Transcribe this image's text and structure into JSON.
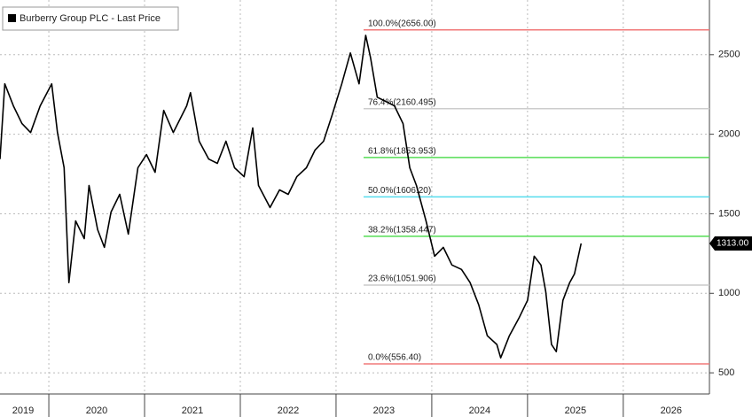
{
  "chart_data": {
    "type": "line",
    "legend": "Burberry Group PLC - Last Price",
    "series": [
      {
        "name": "Burberry Group PLC - Last Price",
        "color": "#000000",
        "x": [
          2019.49,
          2019.54,
          2019.63,
          2019.72,
          2019.81,
          2019.91,
          2020.03,
          2020.09,
          2020.16,
          2020.21,
          2020.28,
          2020.37,
          2020.42,
          2020.51,
          2020.58,
          2020.65,
          2020.74,
          2020.83,
          2020.93,
          2021.02,
          2021.11,
          2021.2,
          2021.3,
          2021.44,
          2021.48,
          2021.57,
          2021.67,
          2021.76,
          2021.85,
          2021.94,
          2022.04,
          2022.13,
          2022.19,
          2022.31,
          2022.41,
          2022.5,
          2022.59,
          2022.69,
          2022.78,
          2022.87,
          2022.96,
          2023.06,
          2023.15,
          2023.24,
          2023.31,
          2023.36,
          2023.43,
          2023.52,
          2023.61,
          2023.7,
          2023.77,
          2023.84,
          2023.94,
          2024.03,
          2024.12,
          2024.21,
          2024.31,
          2024.4,
          2024.49,
          2024.58,
          2024.68,
          2024.72,
          2024.81,
          2024.91,
          2025.0,
          2025.07,
          2025.14,
          2025.19,
          2025.25,
          2025.3,
          2025.37,
          2025.44,
          2025.49,
          2025.56
        ],
        "values": [
          1844,
          2317,
          2178,
          2067,
          2011,
          2178,
          2317,
          2011,
          1789,
          1067,
          1455,
          1344,
          1678,
          1400,
          1289,
          1511,
          1622,
          1372,
          1789,
          1872,
          1761,
          2150,
          2011,
          2178,
          2261,
          1956,
          1844,
          1817,
          1956,
          1789,
          1733,
          2039,
          1678,
          1539,
          1650,
          1622,
          1733,
          1789,
          1900,
          1956,
          2122,
          2317,
          2511,
          2317,
          2622,
          2483,
          2233,
          2206,
          2178,
          2067,
          1789,
          1678,
          1455,
          1233,
          1289,
          1178,
          1150,
          1067,
          928,
          733,
          678,
          594,
          733,
          844,
          956,
          1233,
          1178,
          1011,
          678,
          633,
          956,
          1067,
          1122,
          1313
        ]
      }
    ],
    "last_price": {
      "value": 1313,
      "label": "1313.00"
    },
    "fib_levels": [
      {
        "label": "100.0%(2656.00)",
        "value": 2656,
        "color": "#f07878"
      },
      {
        "label": "76.4%(2160.495)",
        "value": 2160.495,
        "color": "#cccccc"
      },
      {
        "label": "61.8%(1853.953)",
        "value": 1853.953,
        "color": "#55dd55"
      },
      {
        "label": "50.0%(1606.20)",
        "value": 1606.2,
        "color": "#55ddee"
      },
      {
        "label": "38.2%(1358.447)",
        "value": 1358.447,
        "color": "#55dd55"
      },
      {
        "label": "23.6%(1051.906)",
        "value": 1051.906,
        "color": "#cccccc"
      },
      {
        "label": "0.0%(556.40)",
        "value": 556.4,
        "color": "#f07878"
      }
    ],
    "xlim": [
      2019.49,
      2026.9
    ],
    "xticks": [
      2019,
      2020,
      2021,
      2022,
      2023,
      2024,
      2025,
      2026
    ],
    "ylim": [
      367,
      2844
    ],
    "yticks": [
      500,
      1000,
      1500,
      2000,
      2500
    ],
    "grid": true
  }
}
